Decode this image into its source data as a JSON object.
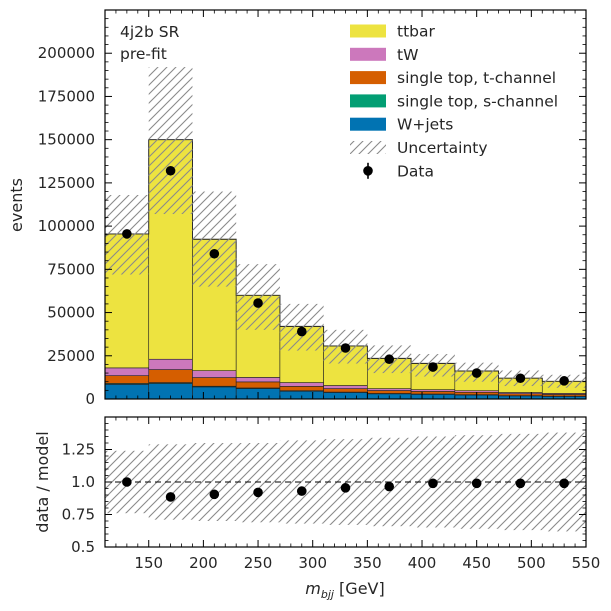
{
  "chart_data": [
    {
      "type": "stacked-histogram",
      "region_text": [
        "4j2b SR",
        "pre-fit"
      ],
      "ylabel": "events",
      "xlim": [
        110,
        550
      ],
      "ylim": [
        0,
        225000
      ],
      "yticks": [
        0,
        25000,
        50000,
        75000,
        100000,
        125000,
        150000,
        175000,
        200000
      ],
      "bin_edges": [
        110,
        150,
        190,
        230,
        270,
        310,
        350,
        390,
        430,
        470,
        510,
        550
      ],
      "series": [
        {
          "name": "W+jets",
          "color": "#0173b2",
          "values": [
            8500,
            9000,
            7000,
            6000,
            4500,
            3800,
            3000,
            2700,
            2300,
            1800,
            1500
          ]
        },
        {
          "name": "single top, s-channel",
          "color": "#029e73",
          "values": [
            500,
            500,
            400,
            400,
            300,
            200,
            200,
            200,
            200,
            150,
            150
          ]
        },
        {
          "name": "single top, t-channel",
          "color": "#d55e00",
          "values": [
            4500,
            7500,
            5000,
            3500,
            2500,
            2000,
            1700,
            1500,
            1400,
            1100,
            1000
          ]
        },
        {
          "name": "tW",
          "color": "#cc78bc",
          "values": [
            4500,
            6000,
            4000,
            2600,
            2200,
            1800,
            1100,
            1000,
            900,
            700,
            600
          ]
        },
        {
          "name": "ttbar",
          "color": "#ede340",
          "values": [
            77500,
            127000,
            76000,
            47500,
            32500,
            22900,
            17500,
            15200,
            11400,
            8300,
            7000
          ]
        }
      ],
      "uncertainty": {
        "name": "Uncertainty",
        "up": [
          118000,
          192000,
          120000,
          78000,
          55000,
          40000,
          31000,
          26000,
          21000,
          16500,
          14000
        ],
        "down": [
          72000,
          107000,
          65000,
          40000,
          28000,
          20500,
          15000,
          13000,
          10000,
          7500,
          6500
        ]
      },
      "data": {
        "name": "Data",
        "x": [
          130,
          170,
          210,
          250,
          290,
          330,
          370,
          410,
          450,
          490,
          530
        ],
        "y": [
          95500,
          132000,
          84000,
          55500,
          39000,
          29500,
          23000,
          18500,
          15000,
          12000,
          10500
        ]
      },
      "legend_position": "top-right",
      "grid": false
    },
    {
      "type": "scatter",
      "xlabel": "m_bjj [GeV]",
      "ylabel": "data / model",
      "xlim": [
        110,
        550
      ],
      "ylim": [
        0.5,
        1.5
      ],
      "yticks": [
        0.5,
        0.75,
        1.0,
        1.25
      ],
      "ytick_labels": [
        "0.5",
        "0.75",
        "1.0",
        "1.25"
      ],
      "xticks": [
        150,
        200,
        250,
        300,
        350,
        400,
        450,
        500,
        550
      ],
      "x": [
        130,
        170,
        210,
        250,
        290,
        330,
        370,
        410,
        450,
        490,
        530
      ],
      "y": [
        1.0,
        0.885,
        0.905,
        0.92,
        0.93,
        0.955,
        0.965,
        0.99,
        0.99,
        0.99,
        0.99
      ],
      "reference_line": 1.0,
      "band_up": [
        1.24,
        1.29,
        1.3,
        1.3,
        1.32,
        1.33,
        1.34,
        1.35,
        1.36,
        1.37,
        1.38
      ],
      "band_down": [
        0.76,
        0.71,
        0.7,
        0.69,
        0.68,
        0.67,
        0.66,
        0.65,
        0.64,
        0.63,
        0.62
      ],
      "grid": false
    }
  ]
}
